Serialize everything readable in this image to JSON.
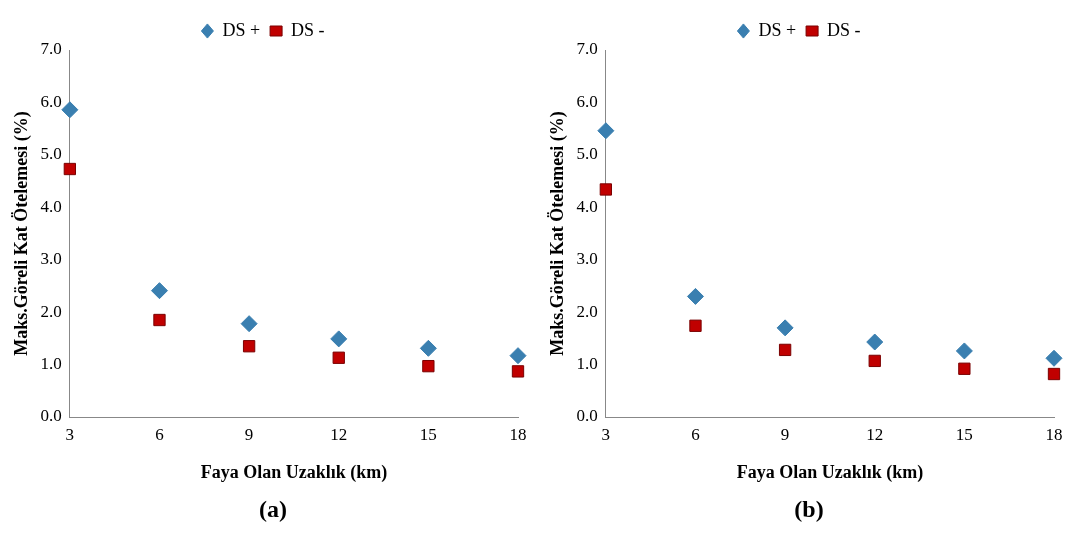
{
  "chart_data": [
    {
      "type": "scatter",
      "xlabel": "Faya Olan Uzaklık (km)",
      "ylabel": "Maks.Göreli Kat Ötelemesi (%)",
      "annotations": [
        "(a)"
      ],
      "x": [
        3,
        6,
        9,
        12,
        15,
        18
      ],
      "xlim": [
        3,
        18
      ],
      "xticks": [
        3,
        6,
        9,
        12,
        15,
        18
      ],
      "ylim": [
        0,
        7
      ],
      "yticks": [
        {
          "value": 0,
          "label": "0.0"
        },
        {
          "value": 1,
          "label": "1.0"
        },
        {
          "value": 2,
          "label": "2.0"
        },
        {
          "value": 3,
          "label": "3.0"
        },
        {
          "value": 4,
          "label": "4.0"
        },
        {
          "value": 5,
          "label": "5.0"
        },
        {
          "value": 6,
          "label": "6.0"
        },
        {
          "value": 7,
          "label": "7.0"
        }
      ],
      "grid": false,
      "legend": "top",
      "series": [
        {
          "name": "DS +",
          "color": "#3a7fb0",
          "marker": "diamond",
          "values": [
            5.86,
            2.41,
            1.78,
            1.49,
            1.31,
            1.17
          ]
        },
        {
          "name": "DS -",
          "color": "#c00000",
          "marker": "square",
          "values": [
            4.73,
            1.85,
            1.35,
            1.13,
            0.97,
            0.87
          ]
        }
      ]
    },
    {
      "type": "scatter",
      "xlabel": "Faya Olan Uzaklık (km)",
      "ylabel": "Maks.Göreli Kat Ötelemesi (%)",
      "annotations": [
        "(b)"
      ],
      "x": [
        3,
        6,
        9,
        12,
        15,
        18
      ],
      "xlim": [
        3,
        18
      ],
      "xticks": [
        3,
        6,
        9,
        12,
        15,
        18
      ],
      "ylim": [
        0,
        7
      ],
      "yticks": [
        {
          "value": 0,
          "label": "0.0"
        },
        {
          "value": 1,
          "label": "1.0"
        },
        {
          "value": 2,
          "label": "2.0"
        },
        {
          "value": 3,
          "label": "3.0"
        },
        {
          "value": 4,
          "label": "4.0"
        },
        {
          "value": 5,
          "label": "5.0"
        },
        {
          "value": 6,
          "label": "6.0"
        },
        {
          "value": 7,
          "label": "7.0"
        }
      ],
      "grid": false,
      "legend": "top",
      "series": [
        {
          "name": "DS +",
          "color": "#3a7fb0",
          "marker": "diamond",
          "values": [
            5.46,
            2.3,
            1.7,
            1.43,
            1.26,
            1.12
          ]
        },
        {
          "name": "DS -",
          "color": "#c00000",
          "marker": "square",
          "values": [
            4.34,
            1.74,
            1.28,
            1.07,
            0.92,
            0.82
          ]
        }
      ]
    }
  ]
}
